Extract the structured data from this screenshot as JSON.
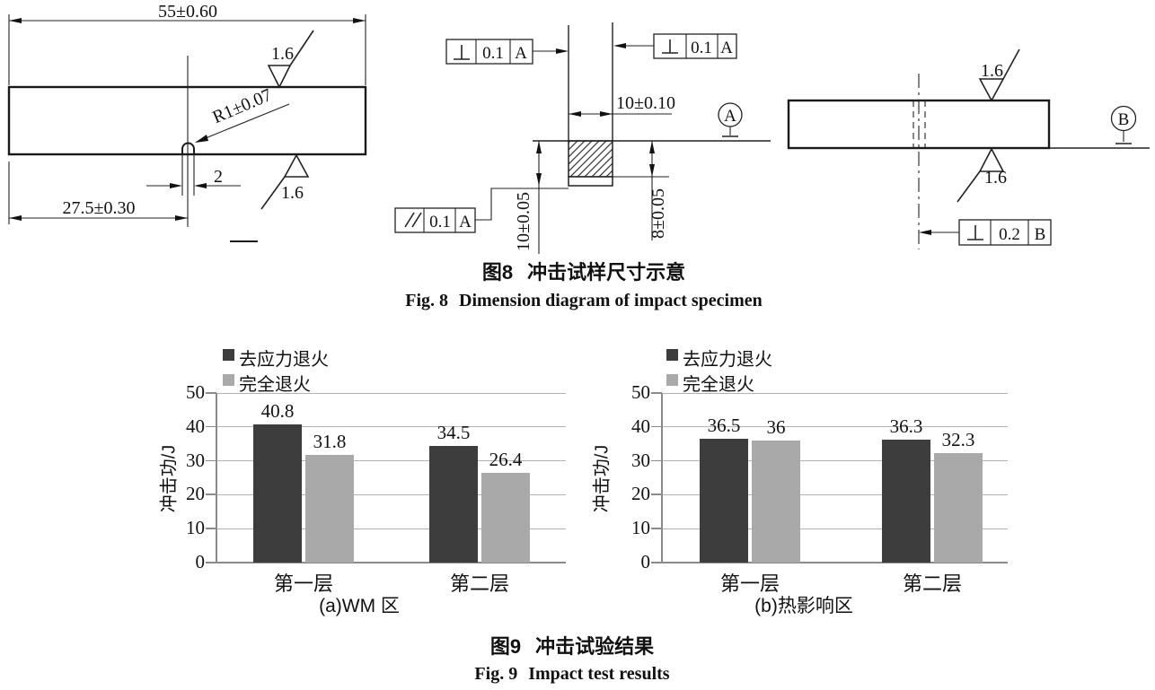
{
  "page": {
    "background": "#ffffff"
  },
  "fig8": {
    "caption_cn_num": "图8",
    "caption_cn_text": "冲击试样尺寸示意",
    "caption_en_num": "Fig. 8",
    "caption_en_text": "Dimension diagram of impact specimen",
    "left": {
      "length": "55±0.60",
      "radius": "R1±0.07",
      "notch_width": "2",
      "notch_position": "27.5±0.30",
      "roughness_top": "1.6",
      "roughness_bottom": "1.6"
    },
    "middle": {
      "perp_left": {
        "symbol": "⊥",
        "value": "0.1",
        "datum": "A"
      },
      "perp_right": {
        "symbol": "⊥",
        "value": "0.1",
        "datum": "A"
      },
      "parallel": {
        "symbol": "∥",
        "value": "0.1",
        "datum": "A"
      },
      "width": "10±0.10",
      "height": "10±0.05",
      "ligament": "8±0.05",
      "datum": "A"
    },
    "right": {
      "roughness_top": "1.6",
      "roughness_bottom": "1.6",
      "datum": "B",
      "perp": {
        "symbol": "⊥",
        "value": "0.2",
        "datum": "B"
      }
    }
  },
  "fig9": {
    "caption_cn_num": "图9",
    "caption_cn_text": "冲击试验结果",
    "caption_en_num": "Fig. 9",
    "caption_en_text": "Impact test results",
    "chart_data": [
      {
        "type": "bar",
        "title": "(a)WM 区",
        "categories": [
          "第一层",
          "第二层"
        ],
        "series": [
          {
            "name": "去应力退火",
            "color": "#3d3d3d",
            "values": [
              40.8,
              34.5
            ]
          },
          {
            "name": "完全退火",
            "color": "#a9a9a9",
            "values": [
              31.8,
              26.4
            ]
          }
        ],
        "ylabel": "冲击功/J",
        "ylim": [
          0,
          50
        ],
        "yticks": [
          0,
          10,
          20,
          30,
          40,
          50
        ],
        "grid": true,
        "legend_position": "top-left"
      },
      {
        "type": "bar",
        "title": "(b)热影响区",
        "categories": [
          "第一层",
          "第二层"
        ],
        "series": [
          {
            "name": "去应力退火",
            "color": "#3d3d3d",
            "values": [
              36.5,
              36.3
            ]
          },
          {
            "name": "完全退火",
            "color": "#a9a9a9",
            "values": [
              36,
              32.3
            ]
          }
        ],
        "ylabel": "冲击功/J",
        "ylim": [
          0,
          50
        ],
        "yticks": [
          0,
          10,
          20,
          30,
          40,
          50
        ],
        "grid": true,
        "legend_position": "top-left"
      }
    ]
  }
}
